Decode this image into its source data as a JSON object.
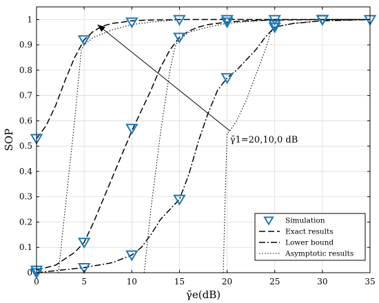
{
  "chart_data": {
    "type": "line",
    "xlabel": "γ̄e(dB)",
    "ylabel": "SOP",
    "xlim": [
      0,
      35
    ],
    "ylim": [
      0,
      1.05
    ],
    "xticks": [
      0,
      5,
      10,
      15,
      20,
      25,
      30,
      35
    ],
    "yticks": [
      0,
      0.1,
      0.2,
      0.3,
      0.4,
      0.5,
      0.6,
      0.7,
      0.8,
      0.9,
      1
    ],
    "grid": true,
    "legend_position": "bottom-right",
    "legend": [
      "Simulation",
      "Exact results",
      "Lower bound",
      "Asymptotic results"
    ],
    "annotation": {
      "text": "γ̄1=20,10,0 dB",
      "arrow_from": [
        20.3,
        0.56
      ],
      "arrow_to": [
        6.4,
        0.98
      ],
      "label_at": [
        20.3,
        0.53
      ]
    },
    "series": [
      {
        "style": "dashed",
        "role": "exact",
        "x": [
          0,
          1,
          2,
          3,
          4,
          5,
          6,
          7,
          8,
          9,
          10,
          12,
          15,
          20,
          25,
          30,
          35
        ],
        "y": [
          0.53,
          0.58,
          0.66,
          0.76,
          0.85,
          0.92,
          0.955,
          0.975,
          0.985,
          0.99,
          0.995,
          0.998,
          1,
          1,
          1,
          1,
          1
        ]
      },
      {
        "style": "dashed",
        "role": "exact",
        "x": [
          0,
          2,
          4,
          5,
          6,
          8,
          10,
          12,
          13,
          14,
          15,
          16,
          17,
          18,
          20,
          22,
          25,
          30,
          35
        ],
        "y": [
          0.01,
          0.03,
          0.08,
          0.12,
          0.2,
          0.38,
          0.56,
          0.72,
          0.81,
          0.88,
          0.93,
          0.955,
          0.97,
          0.98,
          0.99,
          0.995,
          0.998,
          1,
          1
        ]
      },
      {
        "style": "dashdot",
        "role": "lower-bound",
        "x": [
          0,
          5,
          8,
          10,
          11,
          12,
          13,
          14,
          15,
          16,
          17,
          18,
          19,
          20,
          21,
          22,
          23,
          24,
          25,
          27,
          30,
          35
        ],
        "y": [
          0,
          0.02,
          0.04,
          0.07,
          0.1,
          0.15,
          0.21,
          0.25,
          0.29,
          0.39,
          0.52,
          0.63,
          0.72,
          0.77,
          0.8,
          0.84,
          0.88,
          0.93,
          0.97,
          0.985,
          0.995,
          1
        ]
      },
      {
        "style": "dotted",
        "role": "asymptotic",
        "x": [
          2.3,
          3,
          4,
          4.7,
          5,
          6,
          8,
          10,
          12,
          15
        ],
        "y": [
          0,
          0.25,
          0.6,
          0.88,
          0.9,
          0.93,
          0.96,
          0.98,
          0.99,
          1
        ]
      },
      {
        "style": "dotted",
        "role": "asymptotic",
        "x": [
          11.3,
          12,
          13,
          14,
          14.6,
          15,
          16,
          18,
          20,
          25
        ],
        "y": [
          0,
          0.25,
          0.55,
          0.8,
          0.9,
          0.92,
          0.95,
          0.97,
          0.985,
          1
        ]
      },
      {
        "style": "dotted",
        "role": "asymptotic",
        "x": [
          19.6,
          19.8,
          20,
          20.3,
          21,
          22,
          23,
          24,
          24.6,
          25,
          27,
          30,
          35
        ],
        "y": [
          0,
          0.3,
          0.55,
          0.56,
          0.6,
          0.68,
          0.78,
          0.88,
          0.95,
          0.97,
          0.985,
          0.995,
          1
        ]
      }
    ],
    "simulation": {
      "x": [
        0,
        5,
        10,
        15,
        20,
        25,
        30,
        0,
        5,
        10,
        15,
        20,
        25,
        30,
        0,
        5,
        10,
        15,
        20,
        25,
        30,
        35
      ],
      "y": [
        0.53,
        0.92,
        0.99,
        1,
        1,
        1,
        1,
        0.01,
        0.12,
        0.57,
        0.93,
        0.99,
        0.98,
        1,
        0,
        0.02,
        0.07,
        0.29,
        0.77,
        0.97,
        1,
        1
      ]
    },
    "colors": {
      "marker": "#1f77b4",
      "line": "#000000",
      "grid": "#d9d9d9"
    }
  }
}
